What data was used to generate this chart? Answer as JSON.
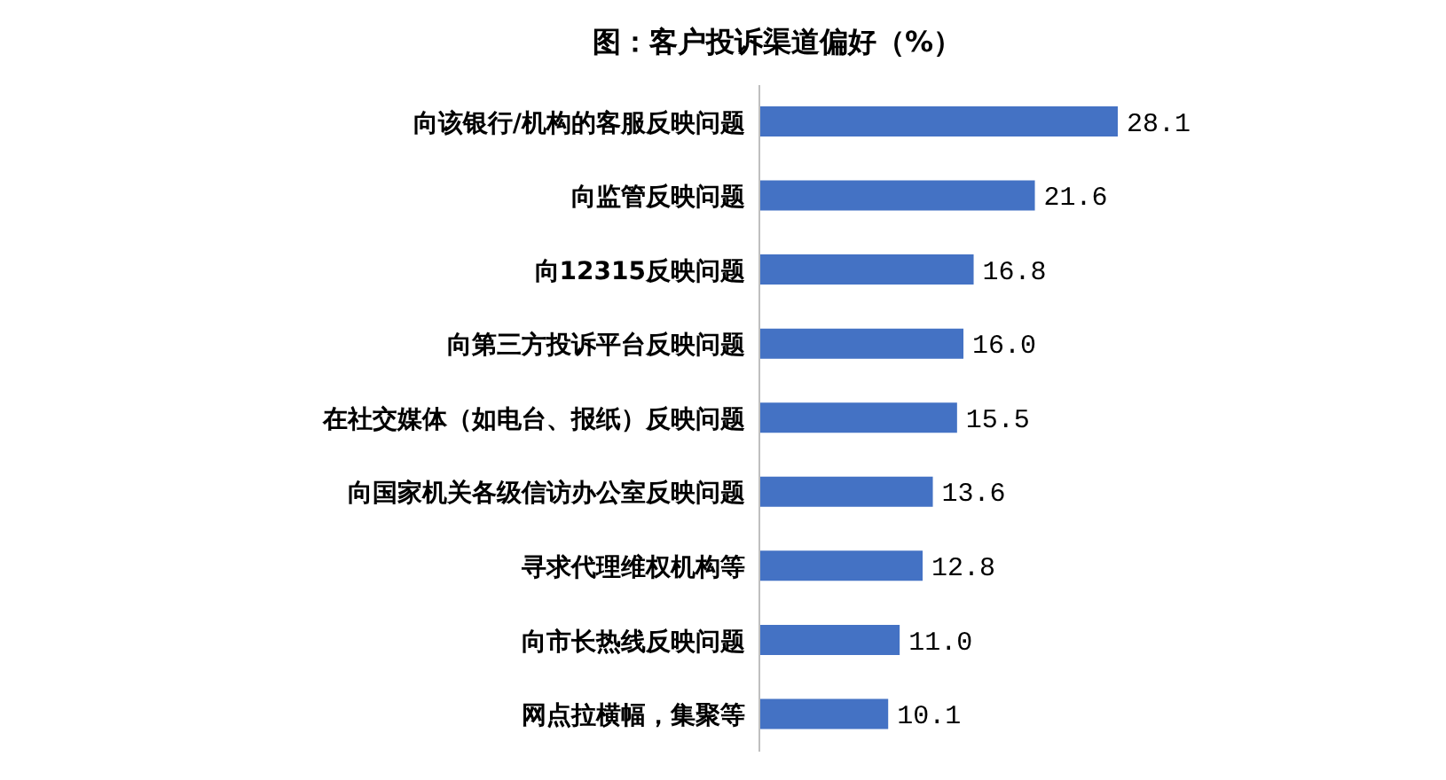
{
  "chart_data": {
    "type": "bar",
    "orientation": "horizontal",
    "title": "图：客户投诉渠道偏好（%）",
    "categories": [
      "向该银行/机构的客服反映问题",
      "向监管反映问题",
      "向12315反映问题",
      "向第三方投诉平台反映问题",
      "在社交媒体（如电台、报纸）反映问题",
      "向国家机关各级信访办公室反映问题",
      "寻求代理维权机构等",
      "向市长热线反映问题",
      "网点拉横幅，集聚等"
    ],
    "values": [
      28.1,
      21.6,
      16.8,
      16.0,
      15.5,
      13.6,
      12.8,
      11.0,
      10.1
    ],
    "value_labels": [
      "28.1",
      "21.6",
      "16.8",
      "16.0",
      "15.5",
      "13.6",
      "12.8",
      "11.0",
      "10.1"
    ],
    "color": "#4472c4"
  }
}
